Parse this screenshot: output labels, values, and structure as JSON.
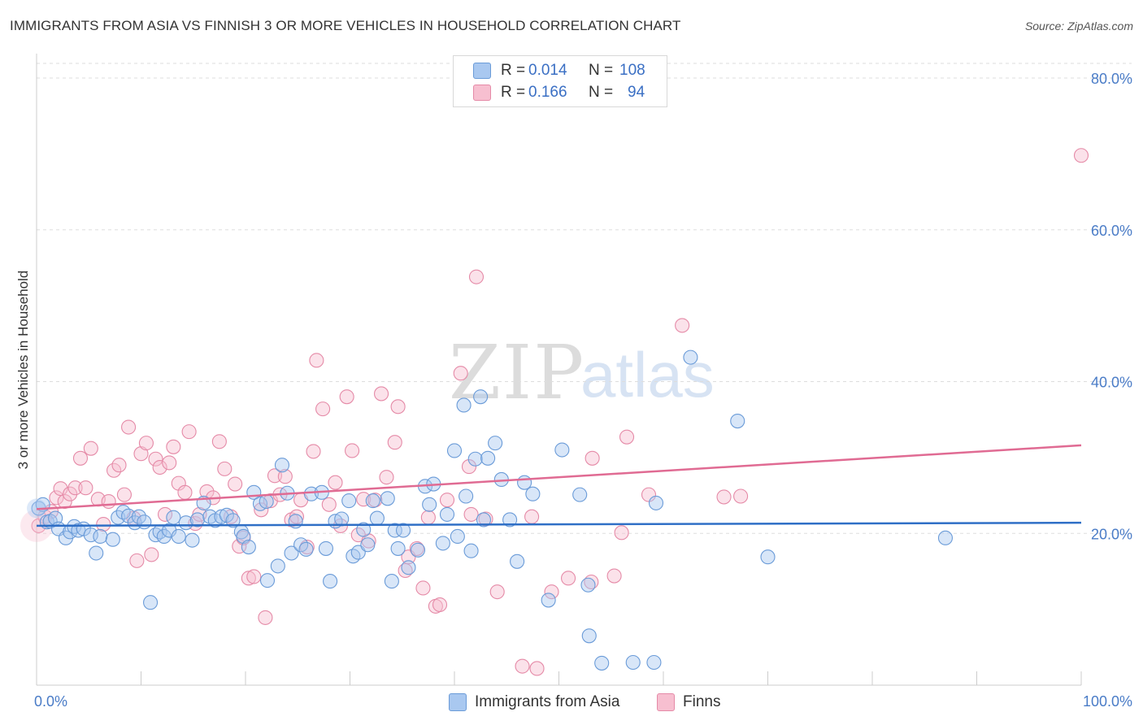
{
  "title": "IMMIGRANTS FROM ASIA VS FINNISH 3 OR MORE VEHICLES IN HOUSEHOLD CORRELATION CHART",
  "source": "Source: ZipAtlas.com",
  "watermark": {
    "zip": "ZIP",
    "atlas": "atlas"
  },
  "legend": {
    "rows": [
      {
        "r_label": "R =",
        "r_value": "0.014",
        "n_label": "N =",
        "n_value": "108",
        "color": "#a9c8f0",
        "border": "#6a9bd8"
      },
      {
        "r_label": "R =",
        "r_value": "0.166",
        "n_label": "N =",
        "n_value": "94",
        "color": "#f7bfd0",
        "border": "#e58aa7"
      }
    ]
  },
  "bottom_legend": [
    {
      "label": "Immigrants from Asia",
      "color": "#a9c8f0",
      "border": "#6a9bd8"
    },
    {
      "label": "Finns",
      "color": "#f7bfd0",
      "border": "#e58aa7"
    }
  ],
  "chart_data": {
    "type": "scatter",
    "title": "IMMIGRANTS FROM ASIA VS FINNISH 3 OR MORE VEHICLES IN HOUSEHOLD CORRELATION CHART",
    "xlabel": "",
    "ylabel": "3 or more Vehicles in Household",
    "xlim": [
      0,
      100
    ],
    "ylim": [
      0,
      82
    ],
    "x_tick_labels": [
      "0.0%",
      "100.0%"
    ],
    "y_ticks": [
      20,
      40,
      60,
      80
    ],
    "y_tick_labels": [
      "20.0%",
      "40.0%",
      "60.0%",
      "80.0%"
    ],
    "grid": "horizontal dashed",
    "series": [
      {
        "name": "Immigrants from Asia",
        "color": "#6a9bd8",
        "fill": "rgba(169,200,240,0.45)",
        "trend": {
          "x": [
            0,
            100
          ],
          "y": [
            21.0,
            21.4
          ],
          "color": "#2f6fc6"
        },
        "points": [
          [
            0.2,
            23.3
          ],
          [
            0.6,
            23.8
          ],
          [
            1.0,
            21.5
          ],
          [
            1.3,
            21.6
          ],
          [
            1.8,
            22.0
          ],
          [
            2.1,
            20.6
          ],
          [
            2.8,
            19.4
          ],
          [
            3.2,
            20.2
          ],
          [
            3.6,
            20.9
          ],
          [
            4.0,
            20.4
          ],
          [
            4.5,
            20.6
          ],
          [
            5.2,
            19.8
          ],
          [
            5.7,
            17.4
          ],
          [
            6.1,
            19.6
          ],
          [
            7.3,
            19.2
          ],
          [
            7.8,
            22.1
          ],
          [
            8.3,
            22.8
          ],
          [
            8.8,
            22.3
          ],
          [
            9.4,
            21.4
          ],
          [
            9.8,
            22.2
          ],
          [
            10.3,
            21.5
          ],
          [
            10.9,
            10.9
          ],
          [
            11.4,
            19.8
          ],
          [
            11.8,
            20.2
          ],
          [
            12.2,
            19.6
          ],
          [
            12.7,
            20.4
          ],
          [
            13.1,
            22.1
          ],
          [
            13.6,
            19.6
          ],
          [
            14.3,
            21.4
          ],
          [
            14.9,
            19.1
          ],
          [
            15.4,
            21.8
          ],
          [
            16.0,
            24.0
          ],
          [
            16.6,
            22.2
          ],
          [
            17.1,
            21.7
          ],
          [
            17.7,
            22.2
          ],
          [
            18.2,
            22.4
          ],
          [
            18.8,
            21.7
          ],
          [
            19.6,
            20.2
          ],
          [
            19.8,
            19.6
          ],
          [
            20.3,
            18.2
          ],
          [
            20.8,
            25.4
          ],
          [
            21.4,
            23.9
          ],
          [
            22.0,
            24.2
          ],
          [
            22.1,
            13.8
          ],
          [
            23.1,
            15.7
          ],
          [
            23.5,
            29.0
          ],
          [
            24.0,
            25.3
          ],
          [
            24.4,
            17.4
          ],
          [
            24.8,
            21.6
          ],
          [
            25.3,
            18.5
          ],
          [
            25.8,
            17.9
          ],
          [
            26.3,
            25.2
          ],
          [
            27.3,
            25.4
          ],
          [
            27.7,
            18.0
          ],
          [
            28.1,
            13.7
          ],
          [
            28.6,
            21.6
          ],
          [
            29.2,
            21.9
          ],
          [
            29.9,
            24.3
          ],
          [
            30.3,
            17.0
          ],
          [
            30.8,
            17.5
          ],
          [
            31.3,
            20.5
          ],
          [
            31.7,
            18.5
          ],
          [
            32.2,
            24.3
          ],
          [
            32.6,
            22.0
          ],
          [
            33.6,
            24.6
          ],
          [
            34.0,
            13.7
          ],
          [
            34.3,
            20.4
          ],
          [
            34.6,
            18.0
          ],
          [
            35.1,
            20.4
          ],
          [
            35.6,
            15.5
          ],
          [
            36.5,
            17.8
          ],
          [
            37.2,
            26.2
          ],
          [
            37.6,
            23.8
          ],
          [
            38.0,
            26.5
          ],
          [
            38.9,
            18.7
          ],
          [
            39.3,
            22.5
          ],
          [
            40.0,
            30.9
          ],
          [
            40.3,
            19.6
          ],
          [
            40.9,
            36.9
          ],
          [
            41.1,
            24.9
          ],
          [
            41.6,
            17.7
          ],
          [
            42.0,
            29.8
          ],
          [
            42.5,
            38.0
          ],
          [
            42.8,
            21.8
          ],
          [
            43.2,
            29.9
          ],
          [
            43.9,
            31.9
          ],
          [
            44.5,
            27.1
          ],
          [
            45.3,
            21.8
          ],
          [
            46.0,
            16.3
          ],
          [
            46.7,
            26.7
          ],
          [
            47.5,
            25.2
          ],
          [
            49.0,
            11.2
          ],
          [
            50.3,
            31.0
          ],
          [
            52.0,
            25.1
          ],
          [
            52.8,
            13.2
          ],
          [
            52.9,
            6.5
          ],
          [
            54.1,
            2.9
          ],
          [
            57.1,
            3.0
          ],
          [
            59.1,
            3.0
          ],
          [
            59.3,
            24.0
          ],
          [
            62.6,
            43.2
          ],
          [
            67.1,
            34.8
          ],
          [
            70.0,
            16.9
          ],
          [
            87.0,
            19.4
          ]
        ]
      },
      {
        "name": "Finns",
        "color": "#e58aa7",
        "fill": "rgba(247,191,208,0.45)",
        "trend": {
          "x": [
            0,
            100
          ],
          "y": [
            23.2,
            31.6
          ],
          "color": "#e06b93"
        },
        "points": [
          [
            0.2,
            21.0
          ],
          [
            0.8,
            22.2
          ],
          [
            1.4,
            22.9
          ],
          [
            1.9,
            24.7
          ],
          [
            2.3,
            25.9
          ],
          [
            2.7,
            24.2
          ],
          [
            3.2,
            25.2
          ],
          [
            3.7,
            26.0
          ],
          [
            4.2,
            29.9
          ],
          [
            4.7,
            26.0
          ],
          [
            5.2,
            31.2
          ],
          [
            5.9,
            24.5
          ],
          [
            6.4,
            21.2
          ],
          [
            6.9,
            24.2
          ],
          [
            7.4,
            28.3
          ],
          [
            7.9,
            29.0
          ],
          [
            8.4,
            25.1
          ],
          [
            8.8,
            34.0
          ],
          [
            9.3,
            22.0
          ],
          [
            9.6,
            16.4
          ],
          [
            10.0,
            30.5
          ],
          [
            10.5,
            31.9
          ],
          [
            11.0,
            17.2
          ],
          [
            11.4,
            29.8
          ],
          [
            11.8,
            28.7
          ],
          [
            12.3,
            22.5
          ],
          [
            12.7,
            29.3
          ],
          [
            13.1,
            31.4
          ],
          [
            13.6,
            26.6
          ],
          [
            14.2,
            25.4
          ],
          [
            14.6,
            33.4
          ],
          [
            15.2,
            21.3
          ],
          [
            15.6,
            22.5
          ],
          [
            16.3,
            25.5
          ],
          [
            16.9,
            24.7
          ],
          [
            17.5,
            32.1
          ],
          [
            18.0,
            28.5
          ],
          [
            18.6,
            22.2
          ],
          [
            19.0,
            26.5
          ],
          [
            19.4,
            18.3
          ],
          [
            19.8,
            19.4
          ],
          [
            20.3,
            14.1
          ],
          [
            20.8,
            14.3
          ],
          [
            21.5,
            23.1
          ],
          [
            21.9,
            8.9
          ],
          [
            22.4,
            24.3
          ],
          [
            22.8,
            27.6
          ],
          [
            23.3,
            25.1
          ],
          [
            23.8,
            27.5
          ],
          [
            24.4,
            21.8
          ],
          [
            24.9,
            22.2
          ],
          [
            25.3,
            24.4
          ],
          [
            25.9,
            18.2
          ],
          [
            26.5,
            30.8
          ],
          [
            26.8,
            42.8
          ],
          [
            27.4,
            36.4
          ],
          [
            28.0,
            23.8
          ],
          [
            28.6,
            26.7
          ],
          [
            29.1,
            21.0
          ],
          [
            29.7,
            38.0
          ],
          [
            30.2,
            30.9
          ],
          [
            30.8,
            19.8
          ],
          [
            31.3,
            24.5
          ],
          [
            31.8,
            19.0
          ],
          [
            32.4,
            24.4
          ],
          [
            33.0,
            38.4
          ],
          [
            33.5,
            27.4
          ],
          [
            34.3,
            32.0
          ],
          [
            34.6,
            36.7
          ],
          [
            35.3,
            15.1
          ],
          [
            35.6,
            16.9
          ],
          [
            36.4,
            18.0
          ],
          [
            37.0,
            12.8
          ],
          [
            37.5,
            22.1
          ],
          [
            38.2,
            10.4
          ],
          [
            38.6,
            10.6
          ],
          [
            39.3,
            24.4
          ],
          [
            40.6,
            41.1
          ],
          [
            41.4,
            28.8
          ],
          [
            41.6,
            22.5
          ],
          [
            42.1,
            53.8
          ],
          [
            43.0,
            21.9
          ],
          [
            44.1,
            12.3
          ],
          [
            47.4,
            22.2
          ],
          [
            49.3,
            12.3
          ],
          [
            50.9,
            14.1
          ],
          [
            53.1,
            13.6
          ],
          [
            53.2,
            29.9
          ],
          [
            55.3,
            14.4
          ],
          [
            56.0,
            20.1
          ],
          [
            56.5,
            32.7
          ],
          [
            58.6,
            25.1
          ],
          [
            61.8,
            47.4
          ],
          [
            65.8,
            24.8
          ],
          [
            67.4,
            24.9
          ],
          [
            100.0,
            69.8
          ],
          [
            46.5,
            2.5
          ],
          [
            47.9,
            2.2
          ]
        ]
      }
    ]
  }
}
